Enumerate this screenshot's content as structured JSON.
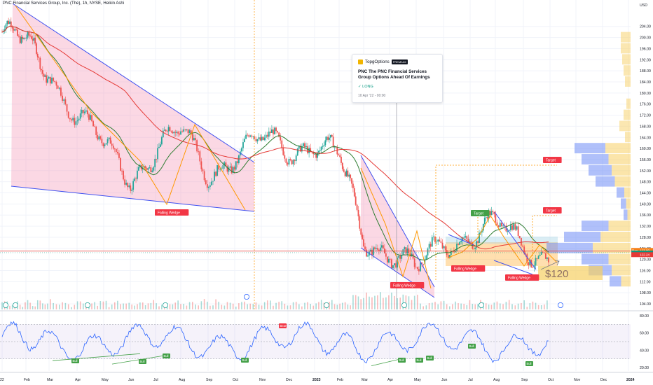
{
  "header": {
    "title_line": "PNC Financial Services Group, Inc. (The), 1h, NYSE, Heikin Ashi"
  },
  "idea_popup": {
    "author": "TopgOptions",
    "badge": "PREMIUM",
    "title": "PNC The PNC Financial Services Group Options Ahead Of Earnings",
    "direction": "LONG",
    "date": "10 Apr '22 - 00:00"
  },
  "labels": {
    "falling_wedge_1": "Falling Wedge",
    "falling_wedge_2": "Falling Wedge",
    "falling_wedge_3": "Falling Wedge",
    "falling_wedge_4": "Falling Wedge",
    "target_1": "Target",
    "target_2": "Target",
    "target_3": "Target",
    "price_target_text": "$120"
  },
  "colors": {
    "up_candle": "#26a69a",
    "down_candle": "#ef5350",
    "ma_fast": "#2e7d32",
    "ma_slow": "#e53935",
    "wedge_line": "#3f51f0",
    "zigzag": "#ff9800",
    "rsi_line": "#2962ff",
    "volume_profile_blue": "#6f8df5",
    "volume_profile_yellow": "#f7d064"
  },
  "chart_data": [
    {
      "type": "line",
      "subtype": "candlestick",
      "series": [
        {
          "name": "PNC",
          "x": [
            "2022-01",
            "2022-02",
            "2022-03",
            "2022-04",
            "2022-05",
            "2022-06",
            "2022-07",
            "2022-08",
            "2022-09",
            "2022-10",
            "2022-11",
            "2022-12",
            "2023-01",
            "2023-02",
            "2023-03",
            "2023-04",
            "2023-05",
            "2023-06",
            "2023-07",
            "2023-08",
            "2023-09",
            "2023-10"
          ],
          "values": [
            202,
            197,
            189,
            172,
            160,
            150,
            160,
            165,
            152,
            158,
            162,
            160,
            163,
            156,
            128,
            124,
            115,
            126,
            130,
            132,
            124,
            122
          ]
        }
      ],
      "x_tick_labels": [
        "22",
        "Feb",
        "Mar",
        "Apr",
        "May",
        "Jun",
        "Jul",
        "Aug",
        "Sep",
        "Oct",
        "Nov",
        "Dec",
        "2023",
        "Feb",
        "Mar",
        "Apr",
        "May",
        "Jun",
        "Jul",
        "Aug",
        "Sep",
        "Oct",
        "Nov",
        "Dec",
        "2024"
      ],
      "y_tick_labels": [
        "USD",
        "204.00",
        "200.00",
        "196.00",
        "192.00",
        "188.00",
        "184.00",
        "180.00",
        "176.00",
        "172.00",
        "168.00",
        "164.00",
        "160.00",
        "156.00",
        "152.00",
        "148.00",
        "144.00",
        "140.00",
        "136.00",
        "132.00",
        "128.00",
        "124.00",
        "120.00",
        "116.00",
        "112.00",
        "108.00",
        "104.00"
      ],
      "ylim": [
        102,
        212
      ],
      "price_tags": [
        {
          "label": "Rev",
          "value": "123.00",
          "color": "#f57f17"
        },
        {
          "label": "PNC",
          "value": "122.44",
          "color": "#089981"
        },
        {
          "label": "",
          "value": "122.24",
          "color": "#e53935"
        }
      ],
      "grid": true
    },
    {
      "type": "line",
      "name": "RSI",
      "y_tick_labels": [
        "80.00",
        "60.00",
        "40.00",
        "20.00"
      ],
      "ylim": [
        16,
        84
      ],
      "bands": [
        30,
        70
      ],
      "markers": {
        "bear": "Bear",
        "bull": "Bull"
      }
    }
  ]
}
